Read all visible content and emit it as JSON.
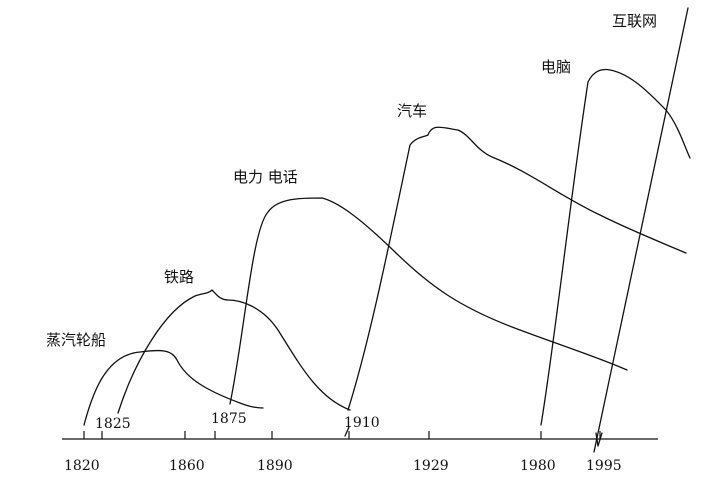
{
  "technologies": [
    {
      "name": "蒸汽轮船",
      "start_year": "1825"
    },
    {
      "name": "铁路",
      "start_year": "1875"
    },
    {
      "name": "电力 电话",
      "start_year": "1910"
    },
    {
      "name": "汽车"
    },
    {
      "name": "电脑"
    },
    {
      "name": "互联网"
    }
  ],
  "axis": {
    "ticks": [
      "1820",
      "1860",
      "1890",
      "1929",
      "1980",
      "1995"
    ]
  }
}
